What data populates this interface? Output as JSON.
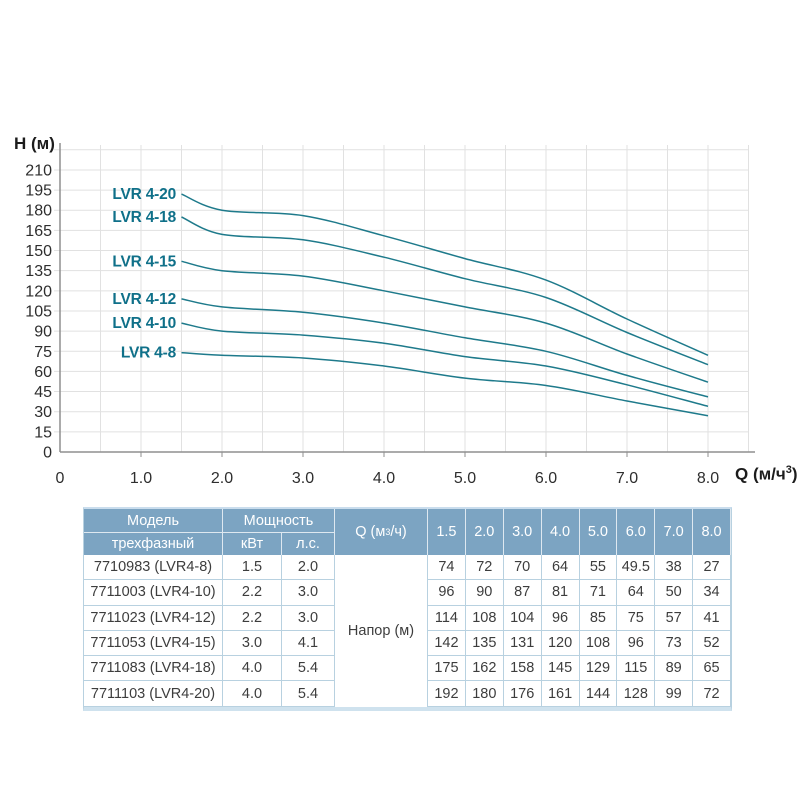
{
  "chart": {
    "y_axis_title": "H (м)",
    "x_axis_title": {
      "pre": "Q (м/ч",
      "sup": "3",
      "post": ")"
    },
    "x_ticks": [
      "0",
      "1.0",
      "2.0",
      "3.0",
      "4.0",
      "5.0",
      "6.0",
      "7.0",
      "8.0"
    ],
    "y_ticks": [
      "0",
      "15",
      "30",
      "45",
      "60",
      "75",
      "90",
      "105",
      "120",
      "135",
      "150",
      "165",
      "180",
      "195",
      "210"
    ]
  },
  "chart_data": {
    "type": "line",
    "title": "",
    "xlabel": "Q (м/ч³)",
    "ylabel": "H (м)",
    "x": [
      1.5,
      2.0,
      3.0,
      4.0,
      5.0,
      6.0,
      7.0,
      8.0
    ],
    "series": [
      {
        "name": "LVR 4-20",
        "values": [
          192,
          180,
          176,
          161,
          144,
          128,
          99,
          72
        ]
      },
      {
        "name": "LVR 4-18",
        "values": [
          175,
          162,
          158,
          145,
          129,
          115,
          89,
          65
        ]
      },
      {
        "name": "LVR 4-15",
        "values": [
          142,
          135,
          131,
          120,
          108,
          96,
          73,
          52
        ]
      },
      {
        "name": "LVR 4-12",
        "values": [
          114,
          108,
          104,
          96,
          85,
          75,
          57,
          41
        ]
      },
      {
        "name": "LVR 4-10",
        "values": [
          96,
          90,
          87,
          81,
          71,
          64,
          50,
          34
        ]
      },
      {
        "name": "LVR 4-8",
        "values": [
          74,
          72,
          70,
          64,
          55,
          49.5,
          38,
          27
        ]
      }
    ],
    "xlim": [
      0,
      8.5
    ],
    "ylim": [
      0,
      225
    ],
    "x_tick_step": 1.0,
    "x_minor_step": 0.5,
    "y_tick_step": 15,
    "grid": true,
    "legend_position": "inline-left-of-curves",
    "line_color": "#1e7a8b",
    "label_color": "#0f7089"
  },
  "table": {
    "header": {
      "model": "Модель",
      "phase": "трехфазный",
      "power": "Мощность",
      "kw": "кВт",
      "hp": "л.с.",
      "q": {
        "pre": "Q (м",
        "sup": "3",
        "post": "/ч)"
      },
      "flow": [
        "1.5",
        "2.0",
        "3.0",
        "4.0",
        "5.0",
        "6.0",
        "7.0",
        "8.0"
      ]
    },
    "napor_label": "Напор (м)",
    "rows": [
      {
        "model": "7710983 (LVR4-8)",
        "kw": "1.5",
        "hp": "2.0",
        "values": [
          "74",
          "72",
          "70",
          "64",
          "55",
          "49.5",
          "38",
          "27"
        ]
      },
      {
        "model": "7711003 (LVR4-10)",
        "kw": "2.2",
        "hp": "3.0",
        "values": [
          "96",
          "90",
          "87",
          "81",
          "71",
          "64",
          "50",
          "34"
        ]
      },
      {
        "model": "7711023 (LVR4-12)",
        "kw": "2.2",
        "hp": "3.0",
        "values": [
          "114",
          "108",
          "104",
          "96",
          "85",
          "75",
          "57",
          "41"
        ]
      },
      {
        "model": "7711053 (LVR4-15)",
        "kw": "3.0",
        "hp": "4.1",
        "values": [
          "142",
          "135",
          "131",
          "120",
          "108",
          "96",
          "73",
          "52"
        ]
      },
      {
        "model": "7711083 (LVR4-18)",
        "kw": "4.0",
        "hp": "5.4",
        "values": [
          "175",
          "162",
          "158",
          "145",
          "129",
          "115",
          "89",
          "65"
        ]
      },
      {
        "model": "7711103 (LVR4-20)",
        "kw": "4.0",
        "hp": "5.4",
        "values": [
          "192",
          "180",
          "176",
          "161",
          "144",
          "128",
          "99",
          "72"
        ]
      }
    ],
    "colors": {
      "header_bg": "#7ca4c2",
      "border": "#b8d1e0",
      "header_text": "#ffffff",
      "cell_text": "#3d3d3d"
    }
  }
}
